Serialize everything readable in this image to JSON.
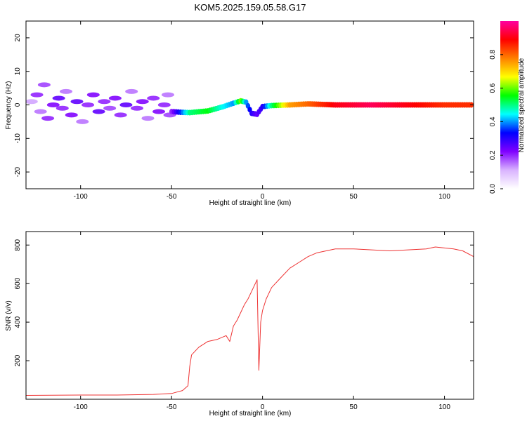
{
  "figure_title": "KOM5.2025.159.05.58.G17",
  "chart_data": [
    {
      "type": "heatmap",
      "xlabel": "Height of straight line (km)",
      "ylabel": "Frequency (Hz)",
      "xlim": [
        -130,
        116
      ],
      "ylim": [
        -25,
        25
      ],
      "xticks": [
        -100,
        -50,
        0,
        50,
        100
      ],
      "yticks": [
        20,
        10,
        0,
        -10,
        -20
      ],
      "colorbar": {
        "label": "Normalized spectral amplitude",
        "ticks": [
          "0.0",
          "0.2",
          "0.4",
          "0.6",
          "0.8"
        ],
        "range": [
          0,
          1
        ],
        "colors": [
          "#ffffff",
          "#d9b3ff",
          "#8000ff",
          "#0000ff",
          "#00ffff",
          "#00ff00",
          "#ffff00",
          "#ff8000",
          "#ff0000",
          "#ff00a0"
        ]
      },
      "ridge": [
        {
          "x": -50,
          "y": -2,
          "amp": 0.2
        },
        {
          "x": -45,
          "y": -2.2,
          "amp": 0.35
        },
        {
          "x": -40,
          "y": -2.3,
          "amp": 0.5
        },
        {
          "x": -30,
          "y": -1.8,
          "amp": 0.55
        },
        {
          "x": -22,
          "y": -0.6,
          "amp": 0.45
        },
        {
          "x": -16,
          "y": 0.5,
          "amp": 0.4
        },
        {
          "x": -12,
          "y": 1.2,
          "amp": 0.6
        },
        {
          "x": -9,
          "y": 0.8,
          "amp": 0.4
        },
        {
          "x": -6,
          "y": -2.5,
          "amp": 0.3
        },
        {
          "x": -3,
          "y": -2.8,
          "amp": 0.25
        },
        {
          "x": 0,
          "y": -0.5,
          "amp": 0.3
        },
        {
          "x": 5,
          "y": -0.2,
          "amp": 0.5
        },
        {
          "x": 15,
          "y": 0,
          "amp": 0.75
        },
        {
          "x": 25,
          "y": 0.3,
          "amp": 0.8
        },
        {
          "x": 40,
          "y": 0,
          "amp": 0.9
        },
        {
          "x": 60,
          "y": 0,
          "amp": 0.95
        },
        {
          "x": 80,
          "y": 0,
          "amp": 0.9
        },
        {
          "x": 100,
          "y": 0,
          "amp": 0.85
        },
        {
          "x": 116,
          "y": 0,
          "amp": 0.85
        }
      ],
      "scatter": [
        {
          "x": -127,
          "y": 1,
          "amp": 0.12
        },
        {
          "x": -124,
          "y": 3,
          "amp": 0.2
        },
        {
          "x": -122,
          "y": -2,
          "amp": 0.15
        },
        {
          "x": -120,
          "y": 6,
          "amp": 0.18
        },
        {
          "x": -118,
          "y": -4,
          "amp": 0.2
        },
        {
          "x": -115,
          "y": 0,
          "amp": 0.22
        },
        {
          "x": -112,
          "y": 2,
          "amp": 0.25
        },
        {
          "x": -110,
          "y": -1,
          "amp": 0.2
        },
        {
          "x": -108,
          "y": 4,
          "amp": 0.15
        },
        {
          "x": -105,
          "y": -3,
          "amp": 0.22
        },
        {
          "x": -102,
          "y": 1,
          "amp": 0.25
        },
        {
          "x": -99,
          "y": -5,
          "amp": 0.15
        },
        {
          "x": -96,
          "y": 0,
          "amp": 0.2
        },
        {
          "x": -93,
          "y": 3,
          "amp": 0.22
        },
        {
          "x": -90,
          "y": -2,
          "amp": 0.25
        },
        {
          "x": -87,
          "y": 1,
          "amp": 0.2
        },
        {
          "x": -84,
          "y": -1,
          "amp": 0.18
        },
        {
          "x": -81,
          "y": 2,
          "amp": 0.22
        },
        {
          "x": -78,
          "y": -3,
          "amp": 0.2
        },
        {
          "x": -75,
          "y": 0,
          "amp": 0.25
        },
        {
          "x": -72,
          "y": 4,
          "amp": 0.15
        },
        {
          "x": -69,
          "y": -1,
          "amp": 0.2
        },
        {
          "x": -66,
          "y": 1,
          "amp": 0.22
        },
        {
          "x": -63,
          "y": -4,
          "amp": 0.15
        },
        {
          "x": -60,
          "y": 2,
          "amp": 0.2
        },
        {
          "x": -57,
          "y": -2,
          "amp": 0.22
        },
        {
          "x": -54,
          "y": 0,
          "amp": 0.2
        },
        {
          "x": -52,
          "y": 3,
          "amp": 0.15
        },
        {
          "x": -51,
          "y": -3,
          "amp": 0.18
        }
      ]
    },
    {
      "type": "line",
      "xlabel": "Height of straight line (km)",
      "ylabel": "SNR (v/v)",
      "xlim": [
        -130,
        116
      ],
      "ylim": [
        0,
        870
      ],
      "xticks": [
        -100,
        -50,
        0,
        50,
        100
      ],
      "yticks": [
        200,
        400,
        600,
        800
      ],
      "line_color": "#ee3333",
      "series": [
        {
          "x": [
            -130,
            -100,
            -80,
            -60,
            -50,
            -44,
            -41,
            -40,
            -39,
            -35,
            -30,
            -25,
            -20,
            -18,
            -16,
            -14,
            -12,
            -10,
            -8,
            -6,
            -4,
            -3,
            -2,
            -1,
            0,
            2,
            5,
            10,
            15,
            20,
            25,
            30,
            35,
            40,
            50,
            60,
            70,
            80,
            90,
            95,
            100,
            105,
            110,
            116
          ],
          "y": [
            20,
            22,
            22,
            25,
            30,
            45,
            70,
            170,
            230,
            270,
            300,
            310,
            330,
            300,
            380,
            410,
            450,
            490,
            520,
            560,
            600,
            620,
            150,
            400,
            460,
            520,
            580,
            630,
            680,
            710,
            740,
            760,
            770,
            780,
            780,
            775,
            770,
            775,
            780,
            790,
            785,
            780,
            770,
            740
          ]
        }
      ]
    }
  ]
}
